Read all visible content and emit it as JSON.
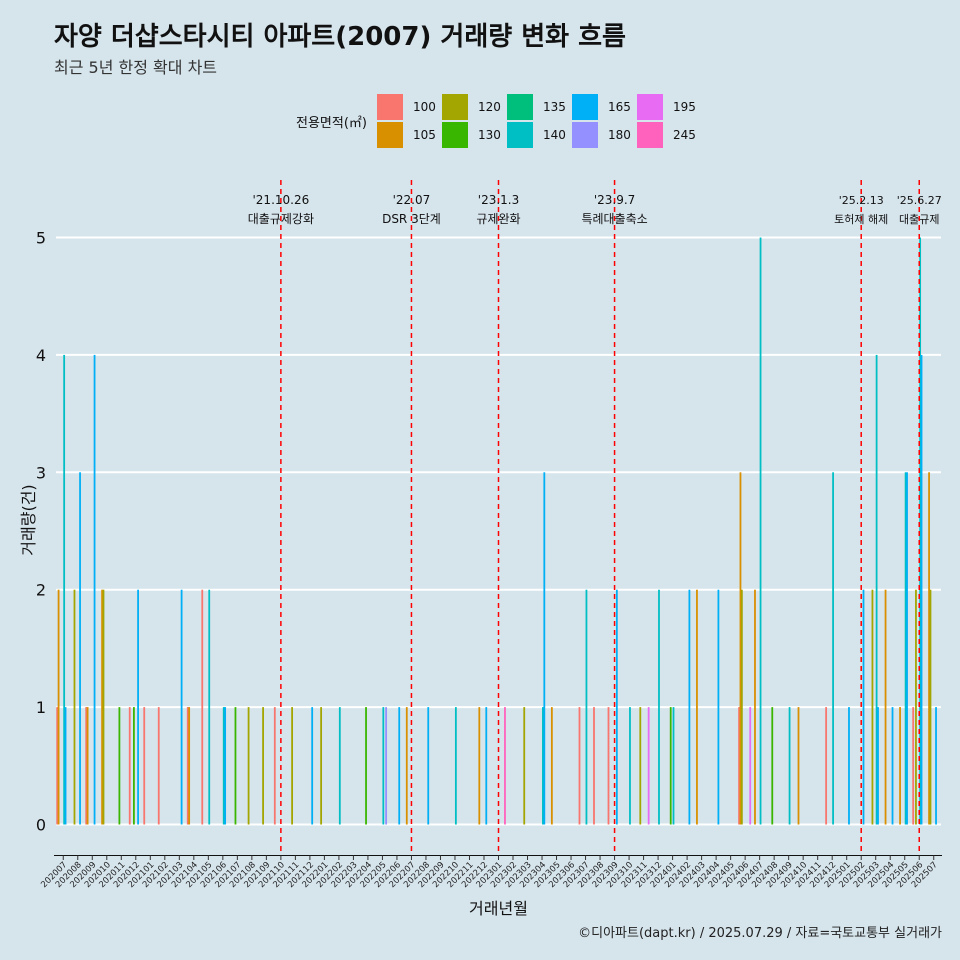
{
  "title": "자양 더샵스타시티 아파트(2007) 거래량 변화 흐름",
  "subtitle": "최근 5년 한정 확대 차트",
  "caption": "©디아파트(dapt.kr) / 2025.07.29 / 자료=국토교통부 실거래가",
  "legend": {
    "title": "전용면적(㎡)",
    "items": [
      {
        "label": "100",
        "color": "#f8766d"
      },
      {
        "label": "105",
        "color": "#d89000"
      },
      {
        "label": "120",
        "color": "#a3a500"
      },
      {
        "label": "130",
        "color": "#39b600"
      },
      {
        "label": "135",
        "color": "#00bf7d"
      },
      {
        "label": "140",
        "color": "#00bfc4"
      },
      {
        "label": "165",
        "color": "#00b0f6"
      },
      {
        "label": "180",
        "color": "#9590ff"
      },
      {
        "label": "195",
        "color": "#e76bf3"
      },
      {
        "label": "245",
        "color": "#ff62bc"
      }
    ]
  },
  "chart_data": {
    "type": "bar",
    "xlabel": "거래년월",
    "ylabel": "거래량(건)",
    "ylim": [
      0,
      5
    ],
    "yticks": [
      "0",
      "1",
      "2",
      "3",
      "4",
      "5"
    ],
    "categories": [
      "202007",
      "202008",
      "202009",
      "202010",
      "202011",
      "202012",
      "202101",
      "202102",
      "202103",
      "202104",
      "202105",
      "202106",
      "202107",
      "202108",
      "202109",
      "202110",
      "202111",
      "202112",
      "202201",
      "202202",
      "202203",
      "202204",
      "202205",
      "202206",
      "202207",
      "202208",
      "202209",
      "202210",
      "202211",
      "202212",
      "202301",
      "202302",
      "202303",
      "202304",
      "202305",
      "202306",
      "202307",
      "202308",
      "202309",
      "202310",
      "202311",
      "202312",
      "202401",
      "202402",
      "202403",
      "202404",
      "202405",
      "202406",
      "202407",
      "202408",
      "202409",
      "202410",
      "202411",
      "202412",
      "202501",
      "202502",
      "202503",
      "202504",
      "202505",
      "202506",
      "202507"
    ],
    "series": [
      {
        "name": "100",
        "values": [
          1,
          0,
          1,
          0,
          0,
          1,
          1,
          1,
          0,
          1,
          2,
          0,
          0,
          0,
          0,
          1,
          0,
          0,
          0,
          0,
          0,
          0,
          0,
          0,
          0,
          0,
          0,
          0,
          0,
          0,
          0,
          0,
          0,
          0,
          0,
          0,
          1,
          1,
          1,
          0,
          0,
          0,
          0,
          0,
          0,
          0,
          0,
          1,
          0,
          0,
          0,
          0,
          0,
          1,
          0,
          0,
          0,
          0,
          0,
          1,
          0
        ]
      },
      {
        "name": "105",
        "values": [
          2,
          0,
          1,
          2,
          0,
          0,
          0,
          0,
          0,
          1,
          0,
          0,
          0,
          0,
          0,
          0,
          0,
          0,
          0,
          0,
          0,
          0,
          0,
          0,
          1,
          0,
          0,
          0,
          0,
          1,
          0,
          0,
          0,
          0,
          1,
          0,
          0,
          0,
          0,
          0,
          0,
          0,
          0,
          0,
          2,
          0,
          0,
          3,
          2,
          0,
          0,
          1,
          0,
          0,
          0,
          0,
          0,
          2,
          1,
          0,
          3
        ]
      },
      {
        "name": "120",
        "values": [
          0,
          2,
          0,
          2,
          0,
          0,
          0,
          0,
          0,
          0,
          0,
          0,
          0,
          1,
          1,
          0,
          1,
          0,
          1,
          0,
          0,
          0,
          0,
          0,
          0,
          0,
          0,
          0,
          0,
          0,
          0,
          0,
          1,
          0,
          0,
          0,
          0,
          0,
          0,
          0,
          1,
          0,
          0,
          0,
          0,
          0,
          0,
          2,
          0,
          0,
          0,
          0,
          0,
          0,
          0,
          0,
          2,
          0,
          0,
          2,
          2
        ]
      },
      {
        "name": "130",
        "values": [
          0,
          0,
          0,
          0,
          1,
          1,
          0,
          0,
          0,
          0,
          0,
          0,
          1,
          0,
          0,
          0,
          0,
          0,
          0,
          0,
          0,
          1,
          0,
          0,
          0,
          0,
          0,
          0,
          0,
          0,
          0,
          0,
          0,
          0,
          0,
          0,
          0,
          0,
          0,
          0,
          0,
          0,
          1,
          0,
          0,
          0,
          0,
          0,
          0,
          1,
          0,
          0,
          0,
          0,
          0,
          0,
          0,
          0,
          0,
          0,
          0
        ]
      },
      {
        "name": "135",
        "values": [
          0,
          0,
          0,
          0,
          0,
          0,
          0,
          0,
          0,
          0,
          0,
          0,
          0,
          0,
          0,
          0,
          0,
          0,
          0,
          0,
          0,
          0,
          0,
          0,
          0,
          0,
          0,
          0,
          0,
          0,
          0,
          0,
          0,
          0,
          0,
          0,
          0,
          0,
          0,
          0,
          0,
          0,
          0,
          0,
          0,
          0,
          0,
          0,
          0,
          0,
          0,
          0,
          0,
          0,
          0,
          0,
          0,
          0,
          0,
          0,
          0
        ]
      },
      {
        "name": "140",
        "values": [
          4,
          0,
          0,
          0,
          0,
          0,
          0,
          0,
          0,
          0,
          2,
          1,
          0,
          0,
          0,
          0,
          0,
          0,
          0,
          1,
          0,
          0,
          1,
          0,
          0,
          0,
          0,
          1,
          0,
          0,
          0,
          0,
          0,
          1,
          0,
          0,
          2,
          0,
          0,
          1,
          0,
          2,
          1,
          0,
          0,
          0,
          0,
          0,
          5,
          0,
          1,
          0,
          0,
          3,
          0,
          0,
          4,
          0,
          3,
          5,
          0
        ]
      },
      {
        "name": "165",
        "values": [
          1,
          3,
          4,
          0,
          0,
          2,
          0,
          0,
          2,
          0,
          0,
          1,
          0,
          0,
          0,
          0,
          0,
          1,
          0,
          0,
          0,
          0,
          0,
          1,
          0,
          1,
          0,
          0,
          0,
          1,
          0,
          0,
          0,
          3,
          0,
          0,
          0,
          0,
          2,
          0,
          0,
          0,
          0,
          2,
          0,
          2,
          0,
          0,
          0,
          0,
          0,
          0,
          0,
          0,
          1,
          2,
          1,
          1,
          3,
          4,
          1
        ]
      },
      {
        "name": "180",
        "values": [
          0,
          0,
          0,
          0,
          0,
          0,
          0,
          0,
          0,
          0,
          0,
          0,
          0,
          0,
          0,
          0,
          0,
          0,
          0,
          0,
          0,
          0,
          1,
          0,
          0,
          0,
          0,
          0,
          0,
          0,
          0,
          0,
          0,
          0,
          0,
          0,
          0,
          0,
          0,
          0,
          0,
          0,
          0,
          0,
          0,
          0,
          0,
          0,
          0,
          0,
          0,
          0,
          0,
          0,
          0,
          0,
          0,
          0,
          0,
          0,
          0
        ]
      },
      {
        "name": "195",
        "values": [
          0,
          0,
          0,
          0,
          0,
          0,
          0,
          0,
          0,
          0,
          0,
          0,
          0,
          0,
          0,
          0,
          0,
          0,
          0,
          0,
          0,
          0,
          0,
          0,
          0,
          0,
          0,
          0,
          0,
          0,
          0,
          0,
          0,
          0,
          0,
          0,
          0,
          0,
          0,
          0,
          1,
          0,
          0,
          0,
          0,
          0,
          0,
          1,
          0,
          0,
          0,
          0,
          0,
          0,
          0,
          0,
          0,
          0,
          0,
          0,
          0
        ]
      },
      {
        "name": "245",
        "values": [
          0,
          0,
          0,
          0,
          0,
          0,
          0,
          0,
          0,
          0,
          0,
          0,
          0,
          0,
          0,
          0,
          0,
          0,
          0,
          0,
          0,
          0,
          0,
          0,
          0,
          0,
          0,
          0,
          0,
          0,
          1,
          0,
          0,
          0,
          0,
          0,
          0,
          0,
          0,
          0,
          0,
          0,
          0,
          0,
          0,
          0,
          0,
          0,
          0,
          0,
          0,
          0,
          0,
          0,
          0,
          0,
          0,
          0,
          0,
          0,
          0
        ]
      }
    ],
    "annotations": [
      {
        "x": "202110",
        "date": "'21.10.26",
        "label": "대출규제강화"
      },
      {
        "x": "202207",
        "date": "'22.07",
        "label": "DSR 3단계"
      },
      {
        "x": "202301",
        "date": "'23.1.3",
        "label": "규제완화"
      },
      {
        "x": "202309",
        "date": "'23.9.7",
        "label": "특례대출축소"
      },
      {
        "x": "202502",
        "date": "'25.2.13",
        "label": "토허제 해제"
      },
      {
        "x": "202506",
        "date": "'25.6.27",
        "label": "대출규제"
      }
    ],
    "annotation_color": "#ff0000",
    "grid": true
  }
}
